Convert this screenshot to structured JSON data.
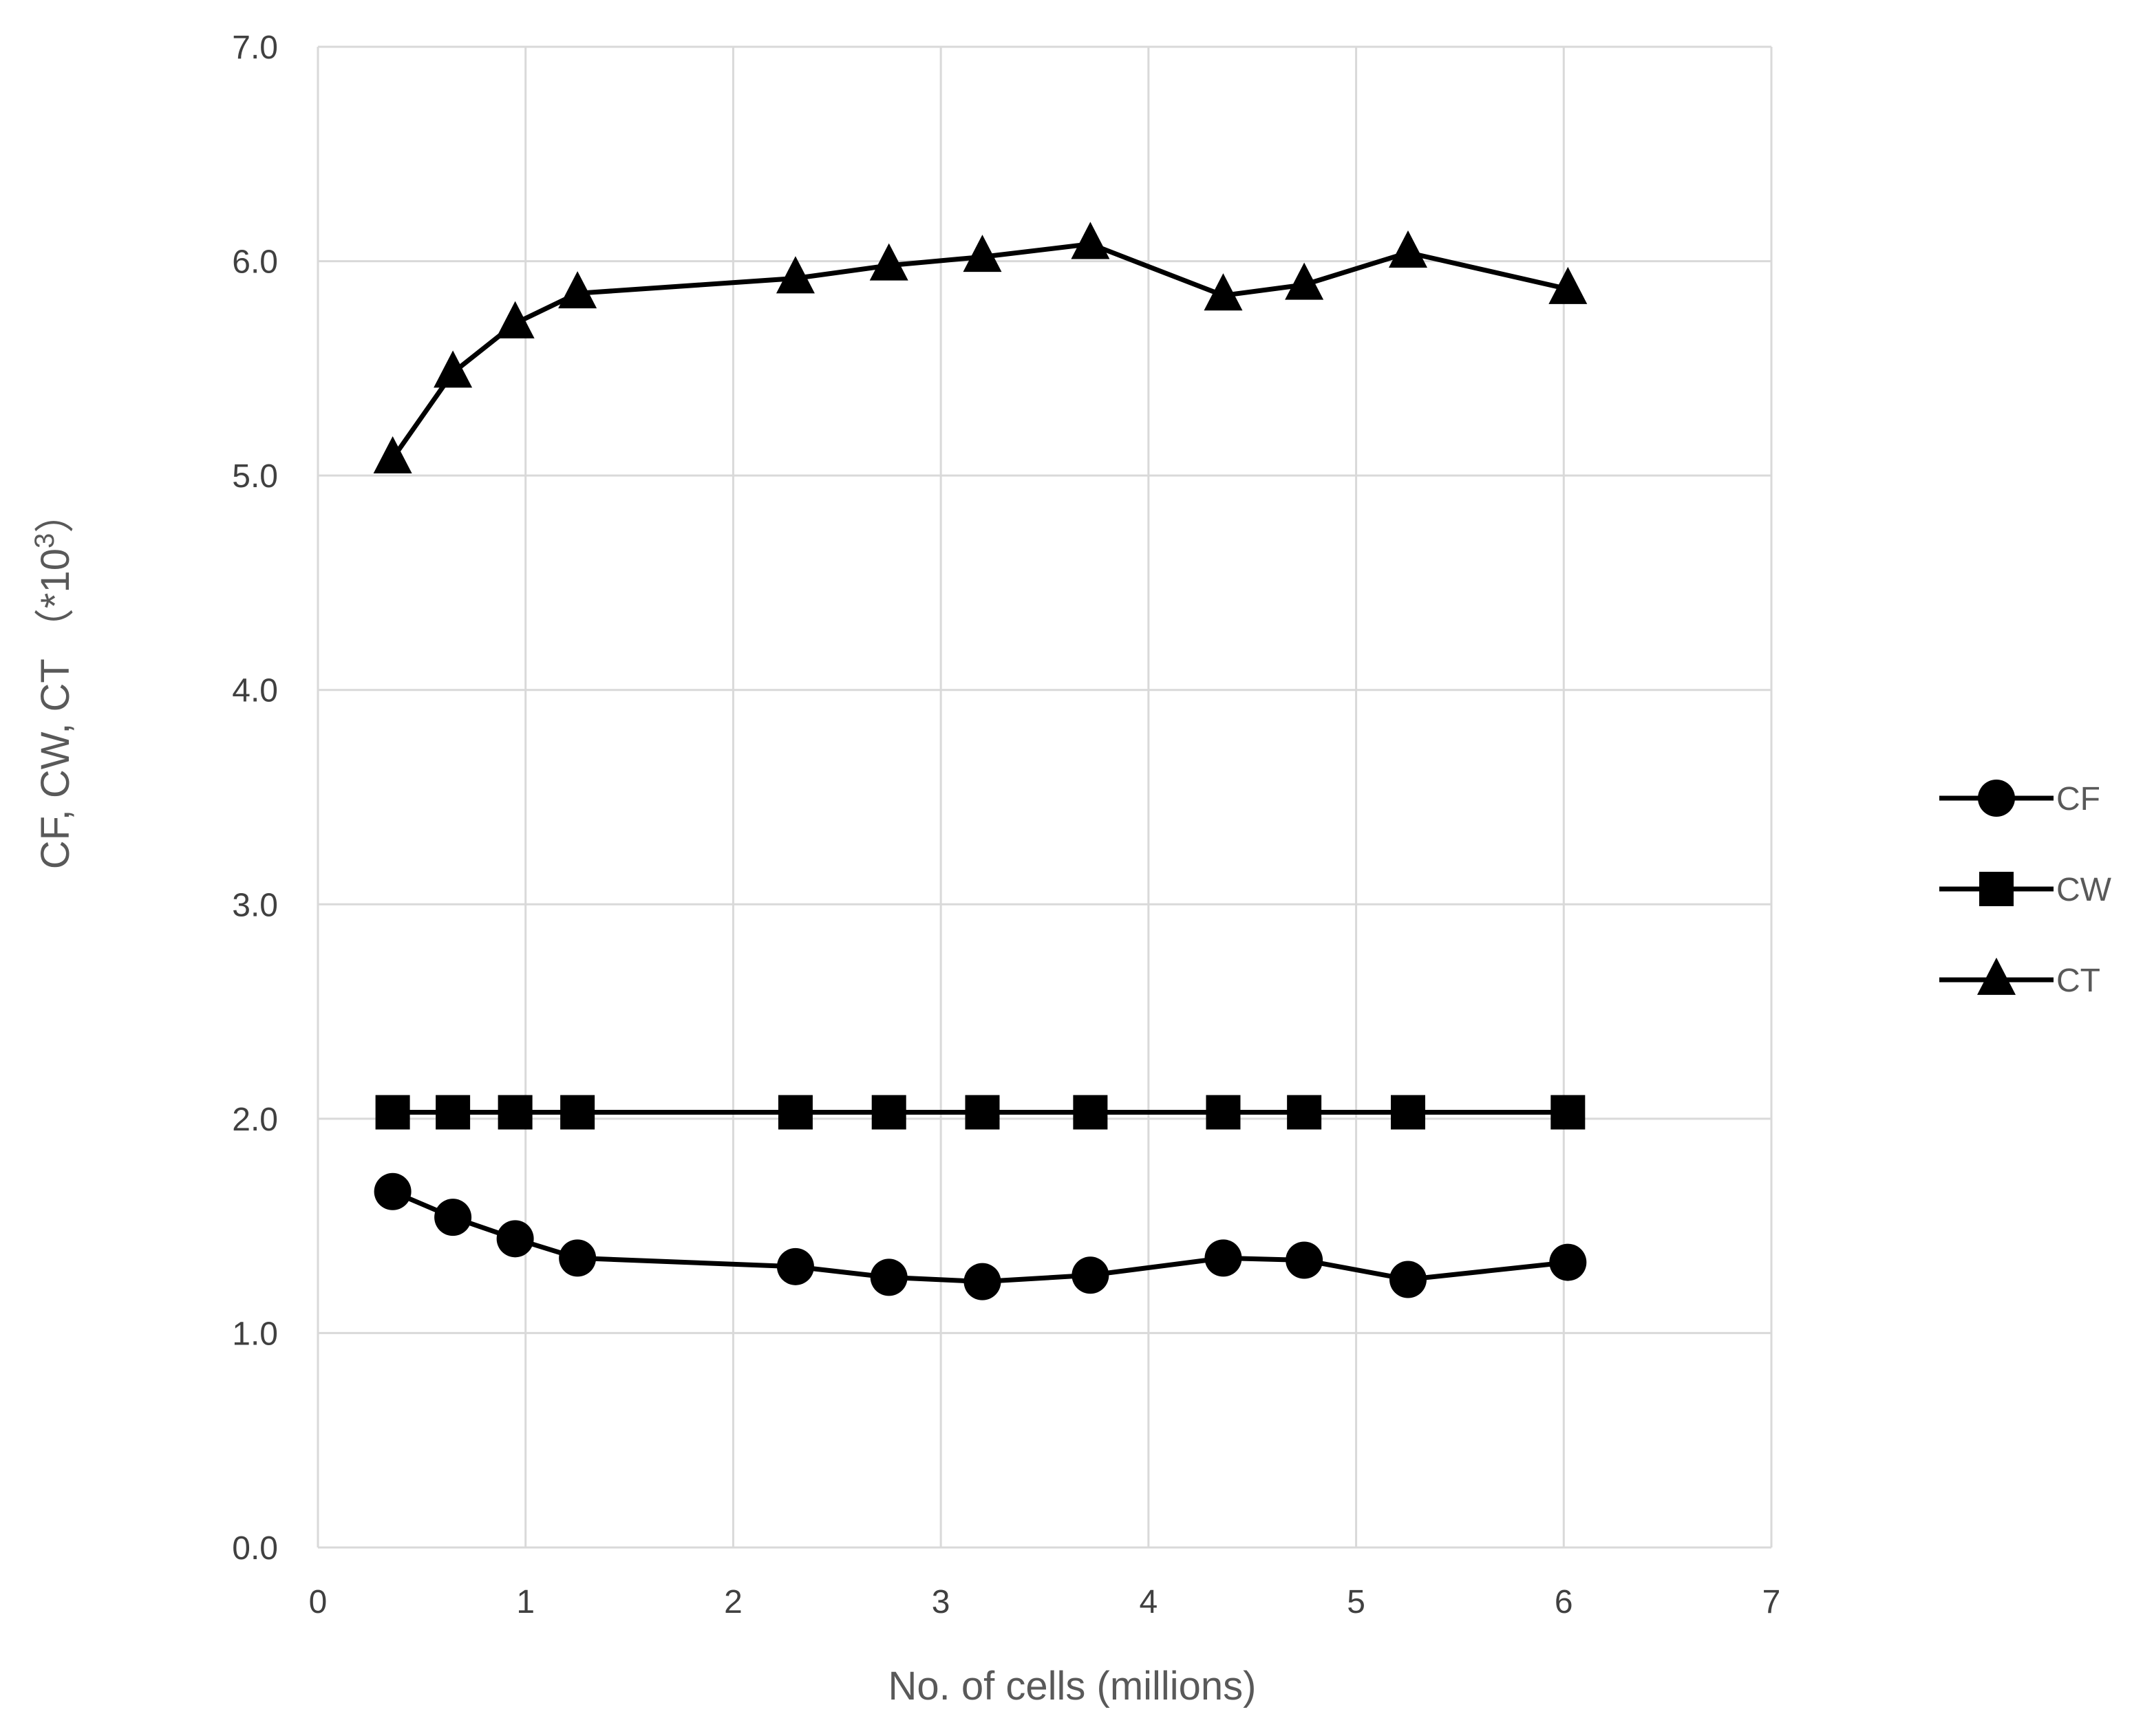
{
  "chart_data": {
    "type": "line",
    "title": "",
    "xlabel": "No. of cells  (millions)",
    "ylabel": "CF, CW, CT  （*10³）",
    "ylabel_parts": {
      "main": "CF, CW, CT  （*10",
      "sup": "3",
      "close": "）"
    },
    "xlim": [
      0,
      7
    ],
    "ylim": [
      0,
      7
    ],
    "x_ticks": [
      "0",
      "1",
      "2",
      "3",
      "4",
      "5",
      "6",
      "7"
    ],
    "y_ticks": [
      "0.0",
      "1.0",
      "2.0",
      "3.0",
      "4.0",
      "5.0",
      "6.0",
      "7.0"
    ],
    "grid": true,
    "legend_position": "right",
    "x": [
      0.36,
      0.65,
      0.95,
      1.25,
      2.3,
      2.75,
      3.2,
      3.72,
      4.36,
      4.75,
      5.25,
      6.02
    ],
    "series": [
      {
        "name": "CF",
        "marker": "circle",
        "values": [
          1.66,
          1.54,
          1.44,
          1.35,
          1.31,
          1.26,
          1.24,
          1.27,
          1.35,
          1.34,
          1.25,
          1.33
        ]
      },
      {
        "name": "CW",
        "marker": "square",
        "values": [
          2.03,
          2.03,
          2.03,
          2.03,
          2.03,
          2.03,
          2.03,
          2.03,
          2.03,
          2.03,
          2.03,
          2.03
        ]
      },
      {
        "name": "CT",
        "marker": "triangle",
        "values": [
          5.08,
          5.48,
          5.71,
          5.85,
          5.92,
          5.98,
          6.02,
          6.08,
          5.84,
          5.89,
          6.04,
          5.87
        ]
      }
    ],
    "colors": {
      "line": "#000000",
      "grid": "#d9d9d9",
      "axis_text": "#404040",
      "title_text": "#595959"
    }
  }
}
